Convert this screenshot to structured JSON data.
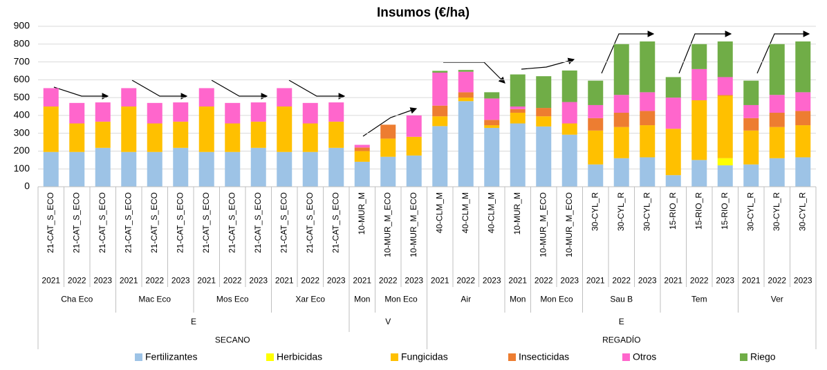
{
  "chart_data": {
    "type": "bar",
    "stacked": true,
    "title": "Insumos (€/ha)",
    "categories": [
      "21-CAT_S_ECO",
      "21-CAT_S_ECO",
      "21-CAT_S_ECO",
      "21-CAT_S_ECO",
      "21-CAT_S_ECO",
      "21-CAT_S_ECO",
      "21-CAT_S_ECO",
      "21-CAT_S_ECO",
      "21-CAT_S_ECO",
      "21-CAT_S_ECO",
      "21-CAT_S_ECO",
      "21-CAT_S_ECO",
      "10-MUR_M",
      "10-MUR_M_ECO",
      "10-MUR_M_ECO",
      "40-CLM_M",
      "40-CLM_M",
      "40-CLM_M",
      "10-MUR_M",
      "10-MUR_M_ECO",
      "10-MUR_M_ECO",
      "30-CYL_R",
      "30-CYL_R",
      "30-CYL_R",
      "15-RIO_R",
      "15-RIO_R",
      "15-RIO_R",
      "30-CYL_R",
      "30-CYL_R",
      "30-CYL_R"
    ],
    "category_levels": [
      [
        "2021",
        "2022",
        "2023",
        "2021",
        "2022",
        "2023",
        "2021",
        "2022",
        "2023",
        "2021",
        "2022",
        "2023",
        "2021",
        "2022",
        "2023",
        "2021",
        "2022",
        "2023",
        "2021",
        "2022",
        "2023",
        "2021",
        "2022",
        "2023",
        "2021",
        "2022",
        "2023",
        "2021",
        "2022",
        "2023"
      ],
      [
        "Cha Eco",
        null,
        null,
        "Mac Eco",
        null,
        null,
        "Mos Eco",
        null,
        null,
        "Xar Eco",
        null,
        null,
        "Mon",
        "Mon Eco",
        null,
        "Air",
        null,
        null,
        "Mon",
        "Mon Eco",
        null,
        "Sau B",
        null,
        null,
        "Tem",
        null,
        null,
        "Ver",
        null,
        null
      ],
      [
        "E",
        null,
        null,
        null,
        null,
        null,
        null,
        null,
        null,
        null,
        null,
        null,
        "V",
        null,
        null,
        "E",
        null,
        null,
        null,
        null,
        null,
        null,
        null,
        null,
        null,
        null,
        null,
        null,
        null,
        null
      ],
      [
        "SECANO",
        null,
        null,
        null,
        null,
        null,
        null,
        null,
        null,
        null,
        null,
        null,
        null,
        null,
        null,
        "REGADÍO",
        null,
        null,
        null,
        null,
        null,
        null,
        null,
        null,
        null,
        null,
        null,
        null,
        null,
        null
      ]
    ],
    "series": [
      {
        "name": "Fertilizantes",
        "color": "#9dc3e6",
        "values": [
          195,
          195,
          218,
          195,
          195,
          218,
          195,
          195,
          218,
          195,
          195,
          218,
          140,
          168,
          175,
          340,
          480,
          330,
          355,
          338,
          292,
          125,
          160,
          165,
          65,
          150,
          120,
          125,
          160,
          165
        ]
      },
      {
        "name": "Herbicidas",
        "color": "#ffff00",
        "values": [
          0,
          0,
          0,
          0,
          0,
          0,
          0,
          0,
          0,
          0,
          0,
          0,
          0,
          0,
          0,
          0,
          0,
          0,
          0,
          0,
          0,
          0,
          0,
          0,
          0,
          0,
          40,
          0,
          0,
          0
        ]
      },
      {
        "name": "Fungicidas",
        "color": "#ffc000",
        "values": [
          255,
          160,
          147,
          255,
          160,
          147,
          255,
          160,
          147,
          255,
          160,
          147,
          60,
          102,
          105,
          55,
          20,
          15,
          60,
          57,
          63,
          190,
          175,
          180,
          260,
          335,
          350,
          190,
          175,
          180
        ]
      },
      {
        "name": "Insecticidas",
        "color": "#ed7d31",
        "values": [
          0,
          0,
          0,
          0,
          0,
          0,
          0,
          0,
          0,
          0,
          0,
          0,
          20,
          78,
          0,
          60,
          30,
          30,
          20,
          47,
          0,
          70,
          80,
          80,
          0,
          0,
          5,
          70,
          80,
          80
        ]
      },
      {
        "name": "Otros",
        "color": "#ff66cc",
        "values": [
          103,
          115,
          108,
          103,
          115,
          108,
          103,
          115,
          108,
          103,
          115,
          108,
          15,
          0,
          120,
          185,
          115,
          120,
          15,
          0,
          120,
          73,
          100,
          105,
          175,
          175,
          100,
          73,
          100,
          105
        ]
      },
      {
        "name": "Riego",
        "color": "#70ad47",
        "values": [
          0,
          0,
          0,
          0,
          0,
          0,
          0,
          0,
          0,
          0,
          0,
          0,
          0,
          0,
          0,
          10,
          10,
          35,
          180,
          178,
          177,
          137,
          285,
          285,
          115,
          140,
          200,
          137,
          285,
          285
        ]
      }
    ],
    "ylim": [
      0,
      900
    ],
    "yticks": [
      0,
      100,
      200,
      300,
      400,
      500,
      600,
      700,
      800,
      900
    ],
    "grid": true,
    "legend": "bottom"
  }
}
